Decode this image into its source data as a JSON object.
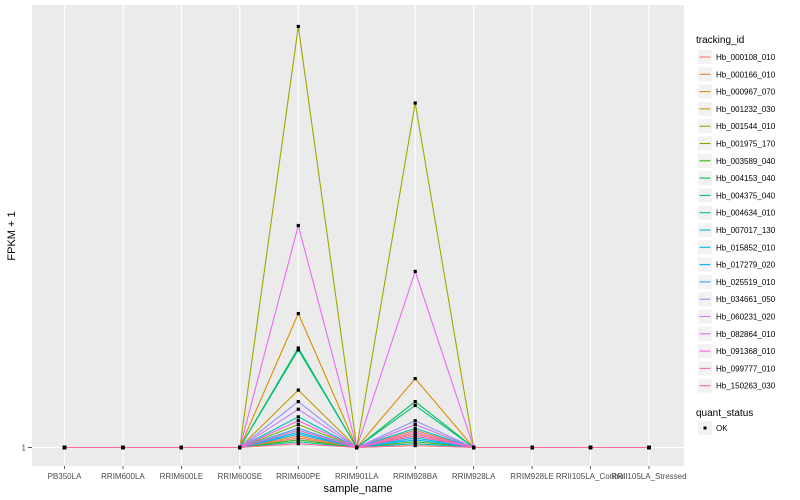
{
  "chart_data": {
    "type": "line",
    "xlabel": "sample_name",
    "ylabel": "FPKM + 1",
    "y_tick_labels": [
      "1"
    ],
    "ylim": [
      1,
      12
    ],
    "categories": [
      "PB350LA",
      "RRIM600LA",
      "RRIM600LE",
      "RRIM600SE",
      "RRIM600PE",
      "RRIM901LA",
      "RRIM928BA",
      "RRIM928LA",
      "RRIM928LE",
      "RRII105LA_Control",
      "RRII105LA_Stressed"
    ],
    "series": [
      {
        "name": "Hb_000108_010",
        "color": "#F8766D",
        "values": [
          1,
          1,
          1,
          1,
          1.25,
          1,
          1.35,
          1,
          1,
          1,
          1
        ]
      },
      {
        "name": "Hb_000166_010",
        "color": "#EA8331",
        "values": [
          1,
          1,
          1,
          1,
          1.3,
          1,
          1.45,
          1,
          1,
          1,
          1
        ]
      },
      {
        "name": "Hb_000967_070",
        "color": "#D89000",
        "values": [
          1,
          1,
          1,
          1,
          4.5,
          1,
          2.8,
          1,
          1,
          1,
          1
        ]
      },
      {
        "name": "Hb_001232_030",
        "color": "#C09B00",
        "values": [
          1,
          1,
          1,
          1,
          2.5,
          1,
          1.6,
          1,
          1,
          1,
          1
        ]
      },
      {
        "name": "Hb_001544_010",
        "color": "#A3A500",
        "values": [
          1,
          1,
          1,
          1,
          12,
          1,
          10,
          1,
          1,
          1,
          1
        ]
      },
      {
        "name": "Hb_001975_170",
        "color": "#7CAE00",
        "values": [
          1,
          1,
          1,
          1,
          1.6,
          1,
          1.3,
          1,
          1,
          1,
          1
        ]
      },
      {
        "name": "Hb_003589_040",
        "color": "#39B600",
        "values": [
          1,
          1,
          1,
          1,
          1.2,
          1,
          1.15,
          1,
          1,
          1,
          1
        ]
      },
      {
        "name": "Hb_004153_040",
        "color": "#00BB4E",
        "values": [
          1,
          1,
          1,
          1,
          3.6,
          1,
          2.2,
          1,
          1,
          1,
          1
        ]
      },
      {
        "name": "Hb_004375_040",
        "color": "#00BF7D",
        "values": [
          1,
          1,
          1,
          1,
          3.55,
          1,
          2.1,
          1,
          1,
          1,
          1
        ]
      },
      {
        "name": "Hb_004634_010",
        "color": "#00C1A3",
        "values": [
          1,
          1,
          1,
          1,
          1.15,
          1,
          1.1,
          1,
          1,
          1,
          1
        ]
      },
      {
        "name": "Hb_007017_130",
        "color": "#00BFC4",
        "values": [
          1,
          1,
          1,
          1,
          1.8,
          1,
          1.5,
          1,
          1,
          1,
          1
        ]
      },
      {
        "name": "Hb_015852_010",
        "color": "#00BAE0",
        "values": [
          1,
          1,
          1,
          1,
          1.4,
          1,
          1.25,
          1,
          1,
          1,
          1
        ]
      },
      {
        "name": "Hb_017279_020",
        "color": "#00B0F6",
        "values": [
          1,
          1,
          1,
          1,
          1.35,
          1,
          1.2,
          1,
          1,
          1,
          1
        ]
      },
      {
        "name": "Hb_025519_010",
        "color": "#35A2FF",
        "values": [
          1,
          1,
          1,
          1,
          1.5,
          1,
          1.3,
          1,
          1,
          1,
          1
        ]
      },
      {
        "name": "Hb_034661_050",
        "color": "#9590FF",
        "values": [
          1,
          1,
          1,
          1,
          2.2,
          1,
          1.7,
          1,
          1,
          1,
          1
        ]
      },
      {
        "name": "Hb_060231_020",
        "color": "#C77CFF",
        "values": [
          1,
          1,
          1,
          1,
          2.0,
          1,
          1.6,
          1,
          1,
          1,
          1
        ]
      },
      {
        "name": "Hb_082864_010",
        "color": "#E76BF3",
        "values": [
          1,
          1,
          1,
          1,
          6.8,
          1,
          5.6,
          1,
          1,
          1,
          1
        ]
      },
      {
        "name": "Hb_091368_010",
        "color": "#FA62DB",
        "values": [
          1,
          1,
          1,
          1,
          1.7,
          1,
          1.4,
          1,
          1,
          1,
          1
        ]
      },
      {
        "name": "Hb_099777_010",
        "color": "#FF62BC",
        "values": [
          1,
          1,
          1,
          1,
          1.45,
          1,
          1.3,
          1,
          1,
          1,
          1
        ]
      },
      {
        "name": "Hb_150263_030",
        "color": "#FF6C91",
        "values": [
          1,
          1,
          1,
          1,
          1.1,
          1,
          1.05,
          1,
          1,
          1,
          1
        ]
      }
    ],
    "legend": {
      "title": "tracking_id",
      "position": "right"
    },
    "point_legend": {
      "title": "quant_status",
      "label": "OK"
    },
    "grid": true
  },
  "colors": {
    "panel": "#EBEBEB",
    "grid": "#FFFFFF",
    "point": "#000000"
  }
}
